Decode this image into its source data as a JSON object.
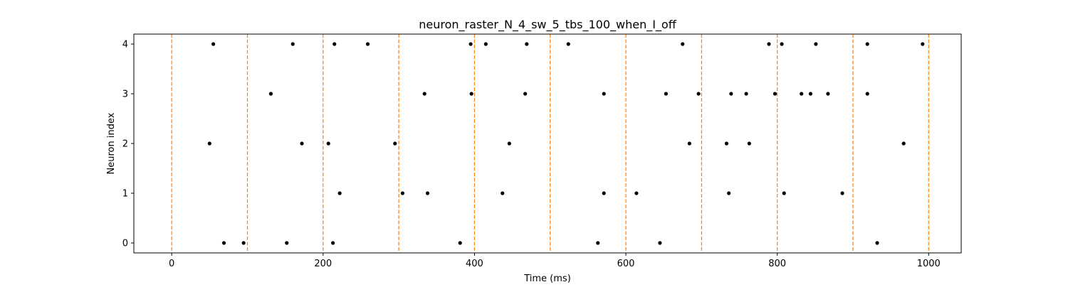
{
  "chart_data": {
    "type": "scatter",
    "title": "neuron_raster_N_4_sw_5_tbs_100_when_I_off",
    "xlabel": "Time (ms)",
    "ylabel": "Neuron index",
    "xlim": [
      -50,
      1043
    ],
    "ylim": [
      -0.2,
      4.2
    ],
    "xticks": [
      0,
      200,
      400,
      600,
      800,
      1000
    ],
    "yticks": [
      0,
      1,
      2,
      3,
      4
    ],
    "grid": false,
    "marker_color": "#000000",
    "vline_color": "#ff7f0e",
    "vlines": [
      0,
      100,
      200,
      300,
      400,
      500,
      600,
      700,
      800,
      900,
      1000
    ],
    "spikes": [
      {
        "neuron": 4,
        "times": [
          55,
          160,
          215,
          259,
          395,
          415,
          469,
          524,
          675,
          789,
          806,
          851,
          919,
          992
        ]
      },
      {
        "neuron": 3,
        "times": [
          131,
          334,
          396,
          467,
          571,
          653,
          696,
          739,
          759,
          797,
          832,
          844,
          867,
          919
        ]
      },
      {
        "neuron": 2,
        "times": [
          50,
          172,
          207,
          295,
          446,
          684,
          733,
          763,
          967
        ]
      },
      {
        "neuron": 1,
        "times": [
          222,
          305,
          338,
          437,
          571,
          614,
          736,
          809,
          886
        ]
      },
      {
        "neuron": 0,
        "times": [
          69,
          95,
          152,
          213,
          381,
          563,
          645,
          932
        ]
      }
    ]
  }
}
